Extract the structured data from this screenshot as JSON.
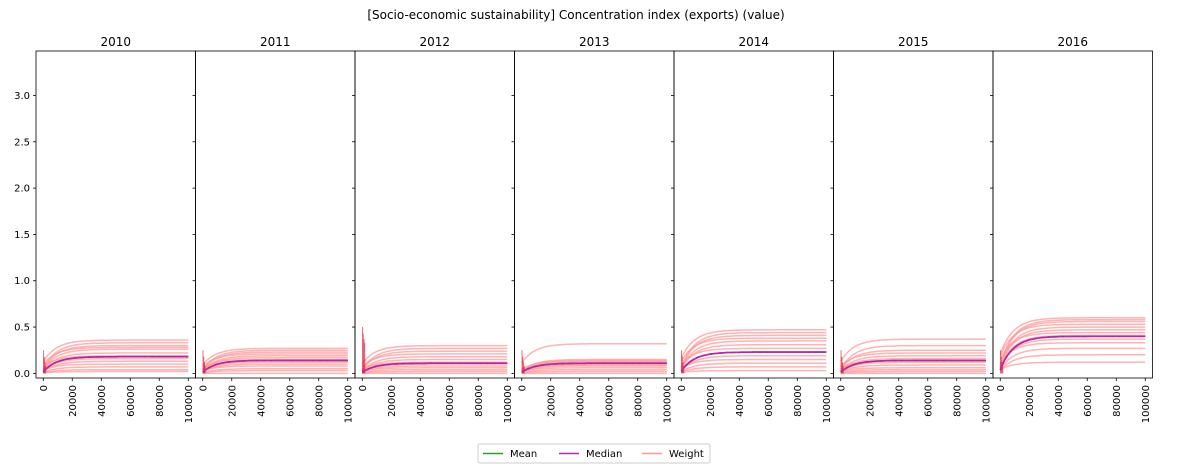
{
  "title": "[Socio-economic sustainability] Concentration index (exports) (value)",
  "colors": {
    "mean": "#2ca02c",
    "median": "#c020c0",
    "weight": "#ff9a9a",
    "marker": "#e0102a"
  },
  "chart_data": {
    "type": "line",
    "panels": [
      "2010",
      "2011",
      "2012",
      "2013",
      "2014",
      "2015",
      "2016"
    ],
    "x_ticks": [
      0,
      20000,
      40000,
      60000,
      80000,
      100000
    ],
    "y_ticks": [
      0.0,
      0.5,
      1.0,
      1.5,
      2.0,
      2.5,
      3.0
    ],
    "y_tick_labels": [
      "0.0",
      "0.5",
      "1.0",
      "1.5",
      "2.0",
      "2.5",
      "3.0"
    ],
    "xlim": [
      -5000,
      105000
    ],
    "ylim": [
      -0.05,
      3.48
    ],
    "legend": [
      "Mean",
      "Median",
      "Weight"
    ],
    "legend_position": "bottom-center",
    "series": [
      {
        "panel": "2010",
        "mean_final": 0.18,
        "median_final": 0.18,
        "weight_finals": [
          0.36,
          0.33,
          0.3,
          0.28,
          0.26,
          0.22,
          0.19,
          0.16,
          0.13,
          0.1,
          0.07,
          0.04,
          0.02
        ]
      },
      {
        "panel": "2011",
        "mean_final": 0.14,
        "median_final": 0.14,
        "weight_finals": [
          0.27,
          0.25,
          0.23,
          0.21,
          0.19,
          0.17,
          0.15,
          0.12,
          0.1,
          0.08,
          0.05,
          0.03,
          0.0
        ]
      },
      {
        "panel": "2012",
        "mean_final": 0.11,
        "median_final": 0.11,
        "weight_finals": [
          0.3,
          0.27,
          0.24,
          0.21,
          0.18,
          0.15,
          0.12,
          0.1,
          0.08,
          0.06,
          0.04,
          0.02,
          0.0
        ]
      },
      {
        "panel": "2013",
        "mean_final": 0.11,
        "median_final": 0.11,
        "weight_finals": [
          0.32,
          0.15,
          0.14,
          0.13,
          0.12,
          0.11,
          0.1,
          0.09,
          0.08,
          0.06,
          0.04,
          0.02,
          0.0
        ]
      },
      {
        "panel": "2014",
        "mean_final": 0.23,
        "median_final": 0.23,
        "weight_finals": [
          0.47,
          0.44,
          0.41,
          0.38,
          0.35,
          0.31,
          0.27,
          0.23,
          0.19,
          0.15,
          0.11,
          0.07,
          0.03
        ]
      },
      {
        "panel": "2015",
        "mean_final": 0.14,
        "median_final": 0.14,
        "weight_finals": [
          0.37,
          0.3,
          0.25,
          0.22,
          0.19,
          0.16,
          0.14,
          0.12,
          0.09,
          0.06,
          0.04,
          0.02,
          0.0
        ]
      },
      {
        "panel": "2016",
        "mean_final": 0.4,
        "median_final": 0.4,
        "weight_finals": [
          0.6,
          0.58,
          0.56,
          0.53,
          0.5,
          0.47,
          0.44,
          0.41,
          0.37,
          0.33,
          0.27,
          0.2,
          0.12
        ]
      }
    ]
  }
}
